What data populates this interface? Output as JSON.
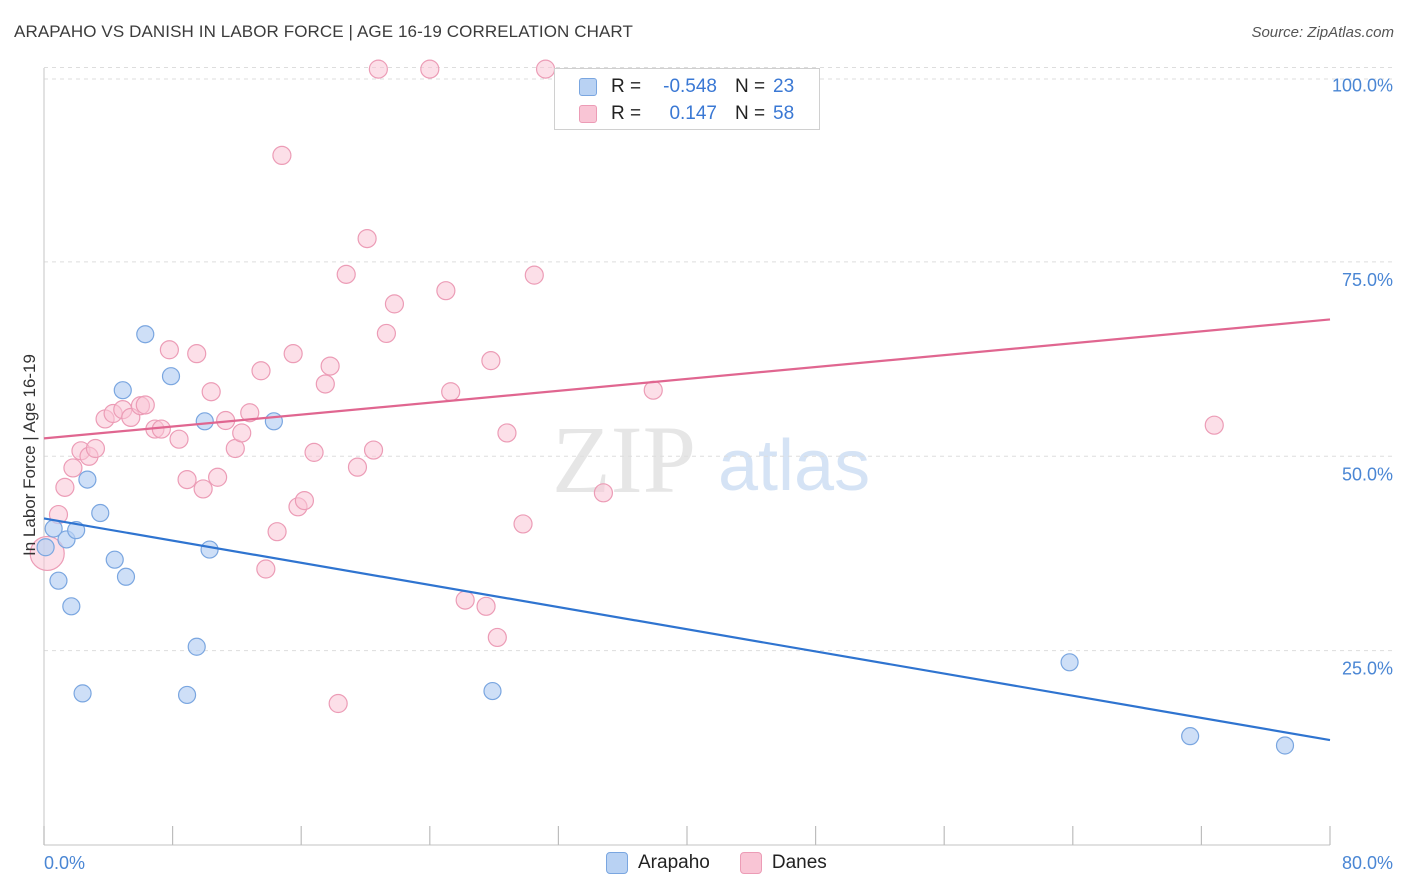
{
  "header": {
    "title": "ARAPAHO VS DANISH IN LABOR FORCE | AGE 16-19 CORRELATION CHART",
    "source": "Source: ZipAtlas.com"
  },
  "legend": {
    "rows": [
      {
        "r_label": "R =",
        "r_value": "-0.548",
        "n_label": "N =",
        "n_value": "23"
      },
      {
        "r_label": "R =",
        "r_value": "0.147",
        "n_label": "N =",
        "n_value": "58"
      }
    ]
  },
  "bottom_legend": [
    "Arapaho",
    "Danes"
  ],
  "watermark": {
    "zip": "ZIP",
    "atlas": "atlas"
  },
  "colors": {
    "arapaho_fill": "#b9d2f3",
    "arapaho_stroke": "#7aa6e0",
    "arapaho_line": "#2f74d0",
    "danes_fill": "#f9c5d5",
    "danes_stroke": "#ec9cb6",
    "danes_line": "#e06690",
    "grid": "#dddddd",
    "tick_text": "#4a86d4"
  },
  "chart_data": {
    "type": "scatter",
    "title": "ARAPAHO VS DANISH IN LABOR FORCE | AGE 16-19 CORRELATION CHART",
    "xlabel": "",
    "ylabel": "In Labor Force | Age 16-19",
    "xlim": [
      0,
      80
    ],
    "ylim": [
      0,
      102
    ],
    "x_tick_labels": [
      "0.0%",
      "80.0%"
    ],
    "y_ticks": [
      25,
      50,
      75,
      100
    ],
    "y_tick_labels": [
      "25.0%",
      "50.0%",
      "75.0%",
      "100.0%"
    ],
    "grid": true,
    "legend_position": "top-center",
    "series": [
      {
        "name": "Arapaho",
        "r": -0.548,
        "n": 23,
        "trend": [
          [
            0,
            42.0
          ],
          [
            80,
            13.5
          ]
        ],
        "points": [
          [
            0.1,
            38.3
          ],
          [
            0.6,
            40.7
          ],
          [
            0.9,
            34.0
          ],
          [
            1.4,
            39.3
          ],
          [
            1.7,
            30.7
          ],
          [
            2.0,
            40.5
          ],
          [
            2.4,
            19.5
          ],
          [
            2.7,
            47.0
          ],
          [
            3.5,
            42.7
          ],
          [
            4.4,
            36.7
          ],
          [
            4.9,
            58.5
          ],
          [
            5.1,
            34.5
          ],
          [
            6.3,
            65.7
          ],
          [
            7.9,
            60.3
          ],
          [
            9.5,
            25.5
          ],
          [
            8.9,
            19.3
          ],
          [
            10.0,
            54.5
          ],
          [
            10.3,
            38.0
          ],
          [
            14.3,
            54.5
          ],
          [
            27.9,
            19.8
          ],
          [
            63.8,
            23.5
          ],
          [
            71.3,
            14.0
          ],
          [
            77.2,
            12.8
          ]
        ]
      },
      {
        "name": "Danes",
        "r": 0.147,
        "n": 58,
        "trend": [
          [
            0,
            52.3
          ],
          [
            80,
            67.6
          ]
        ],
        "points": [
          [
            0.2,
            37.5
          ],
          [
            0.9,
            42.5
          ],
          [
            1.3,
            46.0
          ],
          [
            1.8,
            48.5
          ],
          [
            2.3,
            50.7
          ],
          [
            2.8,
            50.0
          ],
          [
            3.2,
            51.0
          ],
          [
            3.8,
            54.8
          ],
          [
            4.3,
            55.5
          ],
          [
            4.9,
            56.0
          ],
          [
            5.4,
            55.0
          ],
          [
            6.0,
            56.5
          ],
          [
            6.3,
            56.6
          ],
          [
            6.9,
            53.5
          ],
          [
            7.3,
            53.5
          ],
          [
            7.8,
            63.7
          ],
          [
            8.4,
            52.2
          ],
          [
            8.9,
            47.0
          ],
          [
            9.5,
            63.2
          ],
          [
            9.9,
            45.8
          ],
          [
            10.4,
            58.3
          ],
          [
            10.8,
            47.3
          ],
          [
            11.3,
            54.6
          ],
          [
            11.9,
            51.0
          ],
          [
            12.3,
            53.0
          ],
          [
            12.8,
            55.6
          ],
          [
            13.5,
            61.0
          ],
          [
            13.8,
            35.5
          ],
          [
            14.5,
            40.3
          ],
          [
            14.8,
            88.7
          ],
          [
            15.5,
            63.2
          ],
          [
            15.8,
            43.5
          ],
          [
            16.2,
            44.3
          ],
          [
            16.8,
            50.5
          ],
          [
            17.5,
            59.3
          ],
          [
            17.8,
            61.6
          ],
          [
            18.3,
            18.2
          ],
          [
            18.8,
            73.4
          ],
          [
            19.5,
            48.6
          ],
          [
            20.1,
            78.0
          ],
          [
            20.5,
            50.8
          ],
          [
            20.8,
            99.8
          ],
          [
            21.3,
            65.8
          ],
          [
            21.8,
            69.6
          ],
          [
            24.0,
            99.8
          ],
          [
            25.0,
            71.3
          ],
          [
            25.3,
            58.3
          ],
          [
            26.2,
            31.5
          ],
          [
            27.5,
            30.7
          ],
          [
            27.8,
            62.3
          ],
          [
            28.2,
            26.7
          ],
          [
            28.8,
            53.0
          ],
          [
            29.8,
            41.3
          ],
          [
            30.5,
            73.3
          ],
          [
            31.2,
            99.8
          ],
          [
            34.8,
            45.3
          ],
          [
            37.9,
            58.5
          ],
          [
            72.8,
            54.0
          ]
        ]
      }
    ]
  }
}
